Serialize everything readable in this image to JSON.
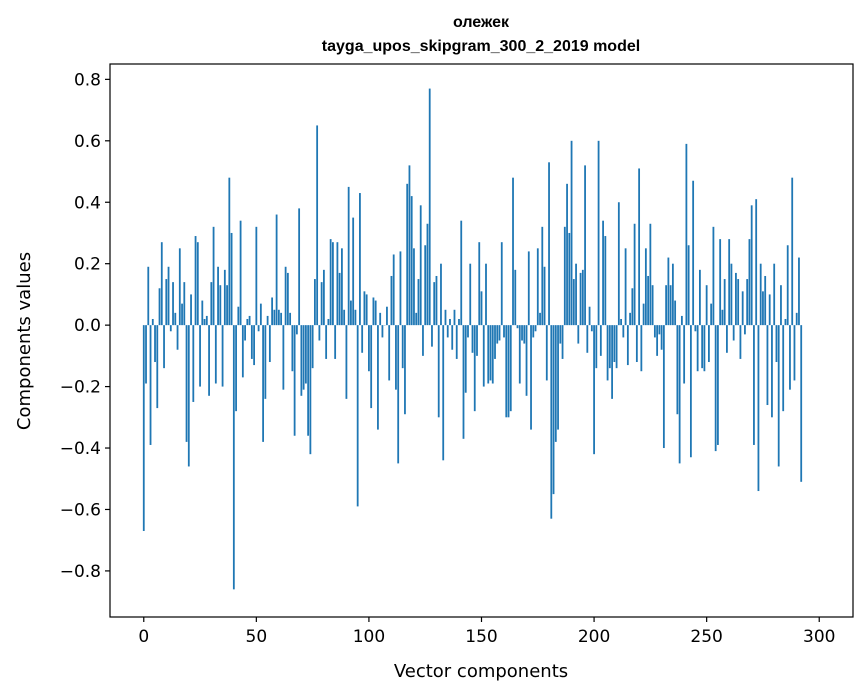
{
  "chart_data": {
    "type": "bar",
    "title": "олежек",
    "subtitle": "tayga_upos_skipgram_300_2_2019 model",
    "xlabel": "Vector components",
    "ylabel": "Components values",
    "xlim": [
      -15,
      315
    ],
    "ylim": [
      -0.95,
      0.85
    ],
    "xticks": [
      0,
      50,
      100,
      150,
      200,
      250,
      300
    ],
    "yticks": [
      -0.8,
      -0.6,
      -0.4,
      -0.2,
      0.0,
      0.2,
      0.4,
      0.6,
      0.8
    ],
    "ytick_labels": [
      "−0.8",
      "−0.6",
      "−0.4",
      "−0.2",
      "0.0",
      "0.2",
      "0.4",
      "0.6",
      "0.8"
    ],
    "xtick_labels": [
      "0",
      "50",
      "100",
      "150",
      "200",
      "250",
      "300"
    ],
    "grid": false,
    "bar_color": "#1f77b4",
    "values": [
      -0.67,
      -0.19,
      0.19,
      -0.39,
      0.02,
      -0.12,
      -0.27,
      0.12,
      0.27,
      -0.14,
      0.15,
      0.19,
      -0.02,
      0.14,
      0.04,
      -0.08,
      0.25,
      0.07,
      0.14,
      -0.38,
      -0.46,
      0.1,
      -0.25,
      0.29,
      0.27,
      -0.2,
      0.08,
      0.02,
      0.03,
      -0.23,
      0.14,
      0.32,
      -0.19,
      0.19,
      0.13,
      -0.2,
      0.18,
      0.13,
      0.48,
      0.3,
      -0.86,
      -0.28,
      0.06,
      0.34,
      -0.17,
      -0.05,
      0.02,
      0.03,
      -0.11,
      -0.13,
      0.32,
      -0.02,
      0.07,
      -0.38,
      -0.24,
      0.03,
      -0.12,
      0.09,
      0.05,
      0.36,
      0.05,
      0.04,
      -0.21,
      0.19,
      0.17,
      0.04,
      -0.15,
      -0.36,
      -0.03,
      0.38,
      -0.23,
      -0.21,
      -0.19,
      -0.36,
      -0.42,
      -0.14,
      0.15,
      0.65,
      -0.05,
      0.14,
      0.18,
      -0.11,
      0.02,
      0.28,
      0.27,
      -0.11,
      0.27,
      0.17,
      0.25,
      0.05,
      -0.24,
      0.45,
      0.08,
      0.35,
      0.05,
      -0.59,
      0.43,
      -0.09,
      0.11,
      0.1,
      -0.15,
      -0.27,
      0.09,
      0.08,
      -0.34,
      0.04,
      -0.04,
      0.0,
      0.06,
      -0.18,
      0.16,
      0.23,
      -0.21,
      -0.45,
      0.24,
      -0.14,
      -0.29,
      0.46,
      0.52,
      0.42,
      0.25,
      0.04,
      0.15,
      0.39,
      -0.1,
      0.26,
      0.33,
      0.77,
      -0.07,
      0.14,
      0.16,
      -0.3,
      0.2,
      -0.44,
      0.05,
      -0.04,
      0.02,
      -0.08,
      0.05,
      -0.11,
      0.02,
      0.34,
      -0.37,
      -0.22,
      -0.04,
      0.2,
      -0.09,
      -0.28,
      -0.1,
      0.27,
      0.11,
      -0.2,
      0.2,
      -0.19,
      -0.18,
      -0.19,
      -0.11,
      -0.06,
      -0.05,
      0.27,
      -0.04,
      -0.3,
      -0.3,
      -0.28,
      0.48,
      0.18,
      -0.01,
      -0.19,
      -0.05,
      -0.06,
      -0.23,
      0.24,
      -0.34,
      -0.04,
      -0.02,
      0.25,
      0.04,
      0.32,
      0.19,
      -0.18,
      0.53,
      -0.63,
      -0.55,
      -0.38,
      -0.34,
      -0.06,
      -0.11,
      0.32,
      0.46,
      0.3,
      0.6,
      0.15,
      0.2,
      -0.06,
      0.17,
      0.18,
      0.52,
      -0.09,
      0.06,
      -0.02,
      -0.42,
      -0.14,
      0.6,
      -0.1,
      0.34,
      0.29,
      -0.18,
      -0.14,
      -0.24,
      -0.12,
      -0.14,
      0.4,
      0.02,
      -0.04,
      0.25,
      -0.13,
      0.04,
      0.12,
      0.33,
      -0.12,
      0.51,
      -0.15,
      0.07,
      0.25,
      0.16,
      0.33,
      0.13,
      -0.04,
      -0.1,
      -0.03,
      -0.08,
      -0.4,
      0.13,
      0.22,
      0.13,
      0.2,
      0.08,
      -0.29,
      -0.45,
      0.03,
      -0.19,
      0.59,
      0.26,
      -0.43,
      0.47,
      -0.02,
      -0.15,
      0.18,
      -0.14,
      -0.15,
      0.13,
      -0.12,
      0.07,
      0.32,
      -0.41,
      -0.39,
      0.28,
      0.05,
      0.15,
      -0.09,
      0.28,
      0.2,
      -0.05,
      0.17,
      0.15,
      -0.11,
      0.11,
      -0.03,
      0.15,
      0.28,
      0.39,
      -0.39,
      0.41,
      -0.54,
      0.2,
      0.11,
      0.16,
      -0.26,
      0.1,
      -0.3,
      0.2,
      -0.12,
      -0.46,
      0.13,
      -0.28,
      0.02,
      0.26,
      -0.21,
      0.48,
      -0.18,
      0.04,
      0.22,
      -0.51
    ]
  }
}
